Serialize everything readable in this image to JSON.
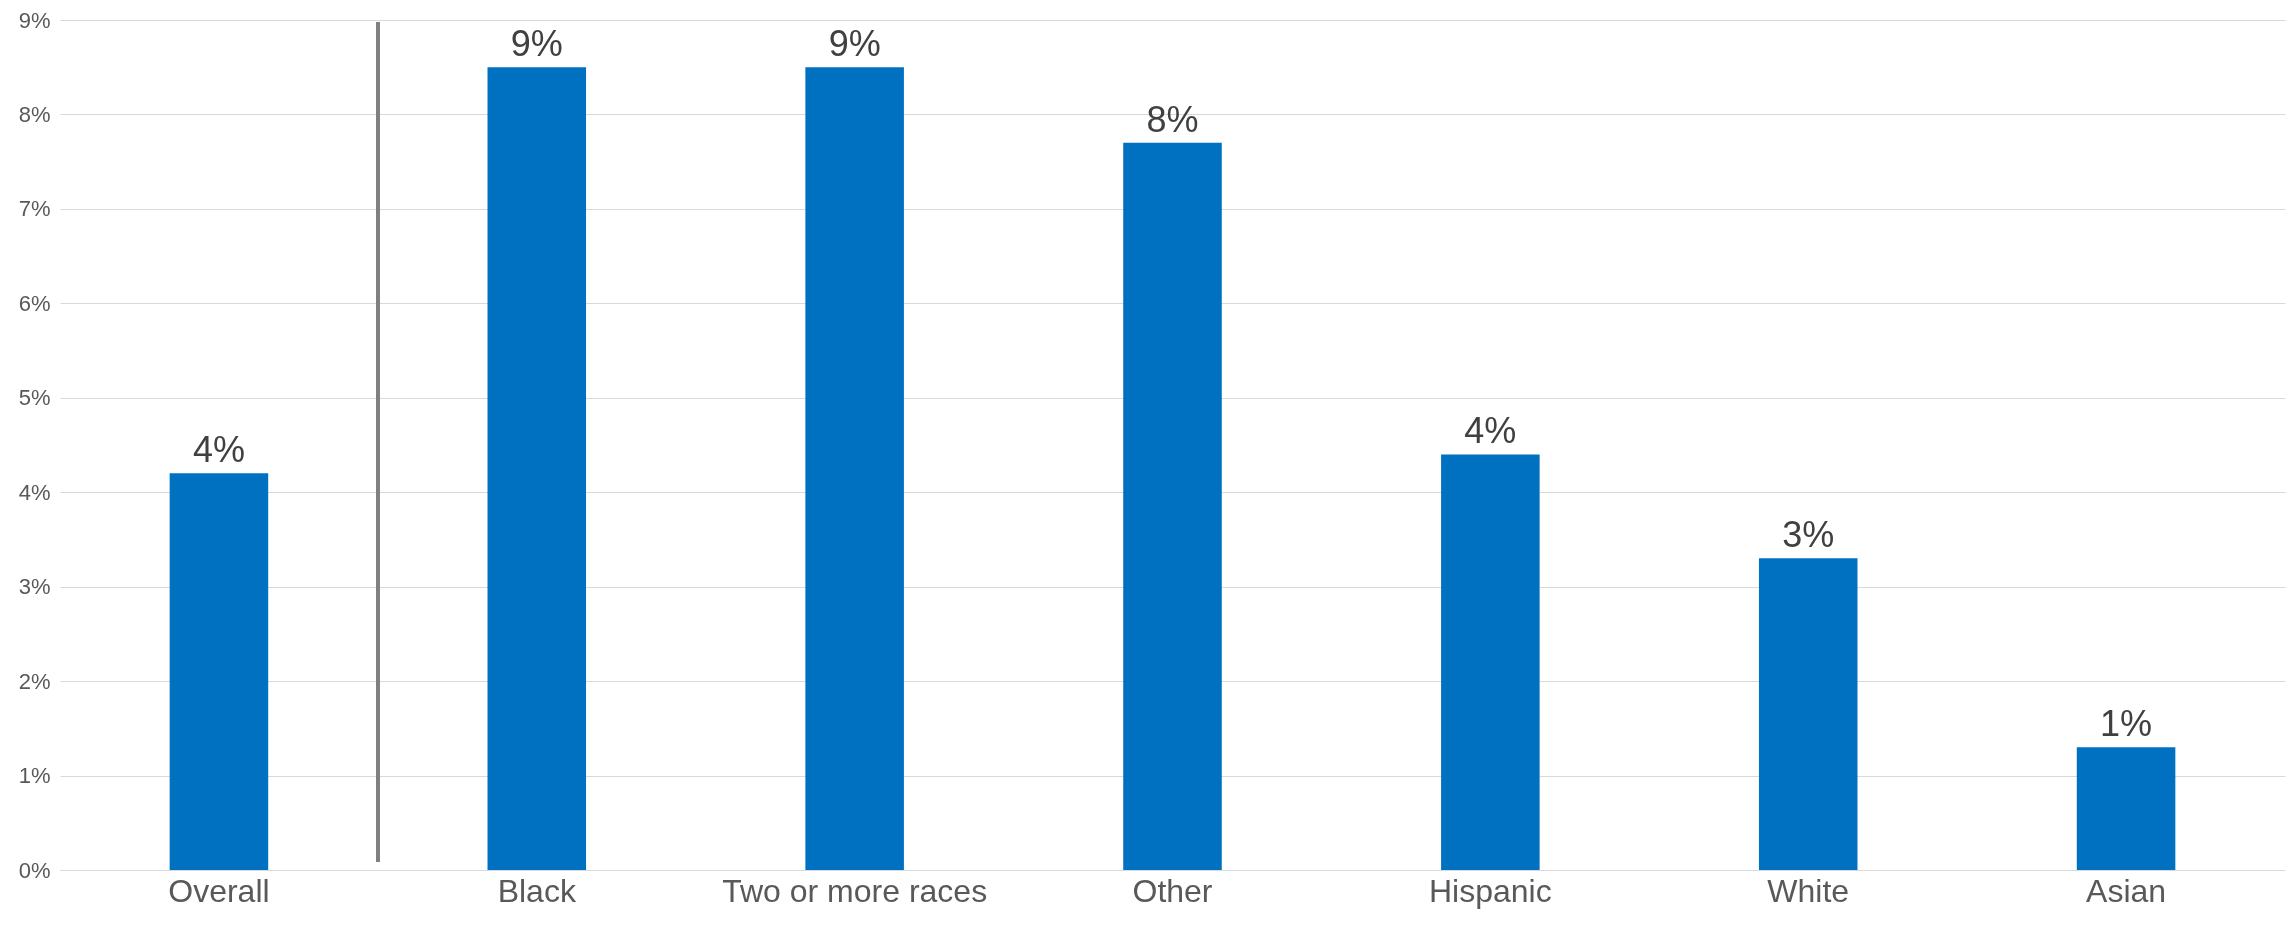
{
  "chart_data": {
    "type": "bar",
    "categories": [
      "Overall",
      "Black",
      "Two or more races",
      "Other",
      "Hispanic",
      "White",
      "Asian"
    ],
    "values": [
      4.2,
      8.5,
      8.5,
      7.7,
      4.4,
      3.3,
      1.3
    ],
    "value_labels": [
      "4%",
      "9%",
      "9%",
      "8%",
      "4%",
      "3%",
      "1%"
    ],
    "color": "#0070c0",
    "ylim": [
      0,
      9
    ],
    "yticks": [
      {
        "value": 0,
        "label": "0%"
      },
      {
        "value": 1,
        "label": "1%"
      },
      {
        "value": 2,
        "label": "2%"
      },
      {
        "value": 3,
        "label": "3%"
      },
      {
        "value": 4,
        "label": "4%"
      },
      {
        "value": 5,
        "label": "5%"
      },
      {
        "value": 6,
        "label": "6%"
      },
      {
        "value": 7,
        "label": "7%"
      },
      {
        "value": 8,
        "label": "8%"
      },
      {
        "value": 9,
        "label": "9%"
      }
    ],
    "grid": "y"
  }
}
